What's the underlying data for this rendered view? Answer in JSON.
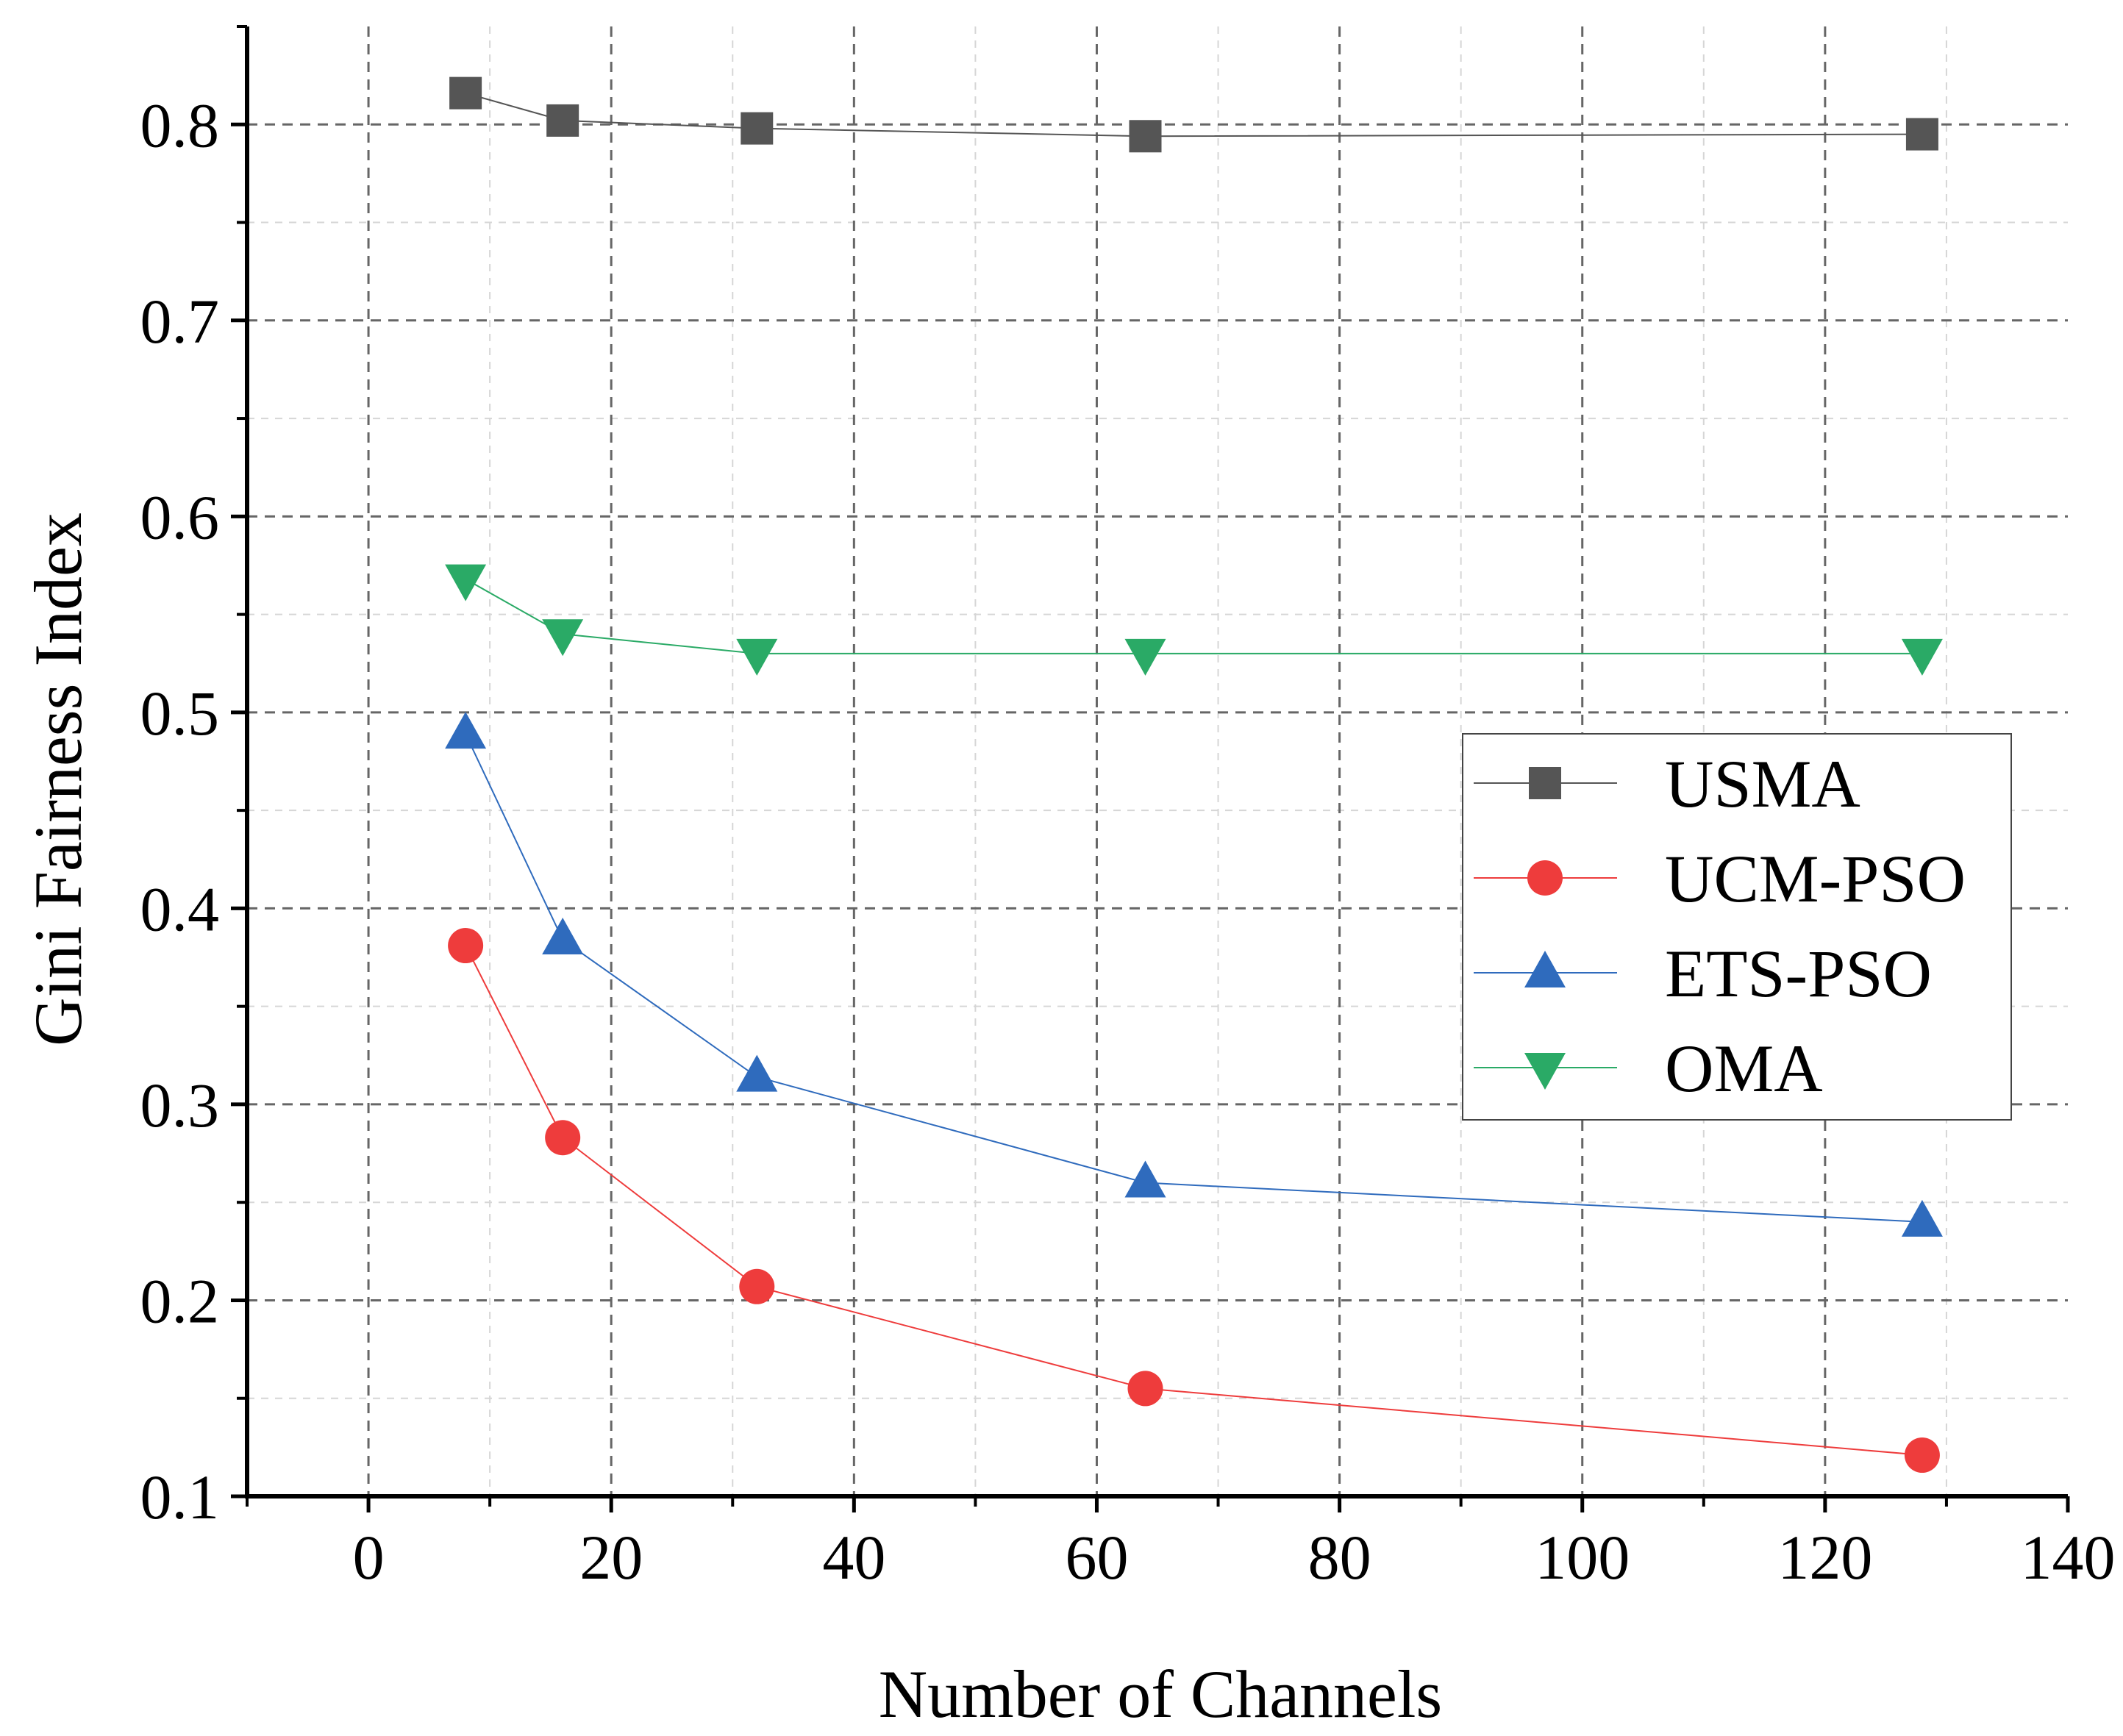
{
  "chart_data": {
    "type": "line",
    "title": "",
    "xlabel": "Number of Channels",
    "ylabel": "Gini Fairness Index",
    "xlim": [
      -10,
      140
    ],
    "ylim": [
      0.1,
      0.85
    ],
    "xticks": [
      0,
      20,
      40,
      60,
      80,
      100,
      120,
      140
    ],
    "xtick_labels": [
      "0",
      "20",
      "40",
      "60",
      "80",
      "100",
      "120",
      "140"
    ],
    "yticks": [
      0.1,
      0.2,
      0.3,
      0.4,
      0.5,
      0.6,
      0.7,
      0.8
    ],
    "ytick_labels": [
      "0.1",
      "0.2",
      "0.3",
      "0.4",
      "0.5",
      "0.6",
      "0.7",
      "0.8"
    ],
    "grid": true,
    "legend_position": "center-right",
    "x": [
      8,
      16,
      32,
      64,
      128
    ],
    "series": [
      {
        "name": "USMA",
        "marker": "square",
        "color": "#555555",
        "values": [
          0.816,
          0.802,
          0.798,
          0.794,
          0.795
        ]
      },
      {
        "name": "UCM-PSO",
        "marker": "circle",
        "color": "#ee3c3c",
        "values": [
          0.381,
          0.283,
          0.207,
          0.155,
          0.121
        ]
      },
      {
        "name": "ETS-PSO",
        "marker": "triangle-up",
        "color": "#2f6bbd",
        "values": [
          0.489,
          0.384,
          0.314,
          0.26,
          0.24
        ]
      },
      {
        "name": "OMA",
        "marker": "triangle-down",
        "color": "#2aaa66",
        "values": [
          0.568,
          0.54,
          0.53,
          0.53,
          0.53
        ]
      }
    ]
  }
}
